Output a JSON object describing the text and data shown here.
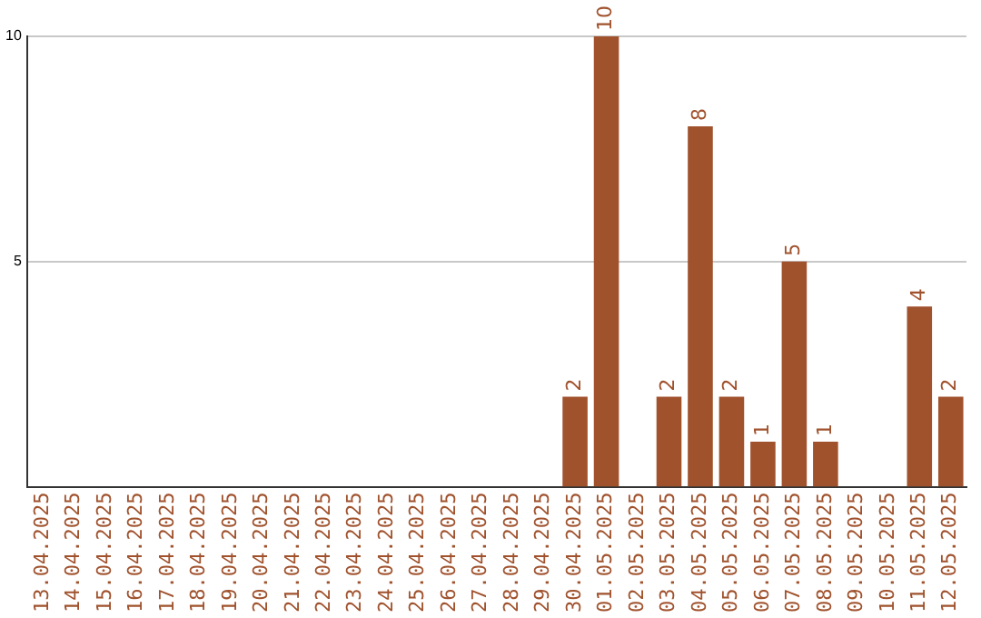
{
  "chart_data": {
    "type": "bar",
    "categories": [
      "13.04.2025",
      "14.04.2025",
      "15.04.2025",
      "16.04.2025",
      "17.04.2025",
      "18.04.2025",
      "19.04.2025",
      "20.04.2025",
      "21.04.2025",
      "22.04.2025",
      "23.04.2025",
      "24.04.2025",
      "25.04.2025",
      "26.04.2025",
      "27.04.2025",
      "28.04.2025",
      "29.04.2025",
      "30.04.2025",
      "01.05.2025",
      "02.05.2025",
      "03.05.2025",
      "04.05.2025",
      "05.05.2025",
      "06.05.2025",
      "07.05.2025",
      "08.05.2025",
      "09.05.2025",
      "10.05.2025",
      "11.05.2025",
      "12.05.2025"
    ],
    "values": [
      0,
      0,
      0,
      0,
      0,
      0,
      0,
      0,
      0,
      0,
      0,
      0,
      0,
      0,
      0,
      0,
      0,
      2,
      10,
      0,
      2,
      8,
      2,
      1,
      5,
      1,
      0,
      0,
      4,
      2
    ],
    "value_labels": [
      null,
      null,
      null,
      null,
      null,
      null,
      null,
      null,
      null,
      null,
      null,
      null,
      null,
      null,
      null,
      null,
      null,
      "2",
      "10",
      null,
      "2",
      "8",
      "2",
      "1",
      "5",
      "1",
      null,
      null,
      "4",
      "2"
    ],
    "color": "#a0522d",
    "ylim": [
      0,
      10
    ],
    "yticks": [
      5,
      10
    ],
    "grid": "y",
    "legend": false
  }
}
